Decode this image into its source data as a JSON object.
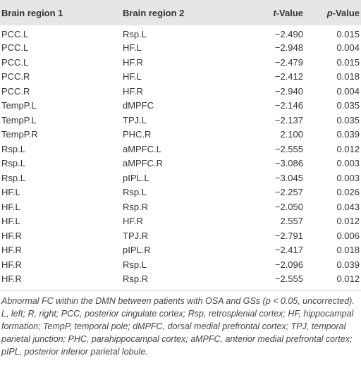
{
  "table": {
    "headers": [
      "Brain region 1",
      "Brain region 2",
      "Value",
      "Value"
    ],
    "header_prefixes": [
      "",
      "",
      "t-",
      "p-"
    ],
    "rows": [
      [
        "PCC.L",
        "Rsp.L",
        "−2.490",
        "0.015"
      ],
      [
        "PCC.L",
        "HF.L",
        "−2.948",
        "0.004"
      ],
      [
        "PCC.L",
        "HF.R",
        "−2.479",
        "0.015"
      ],
      [
        "PCC.R",
        "HF.L",
        "−2.412",
        "0.018"
      ],
      [
        "PCC.R",
        "HF.R",
        "−2.940",
        "0.004"
      ],
      [
        "TempP.L",
        "dMPFC",
        "−2.146",
        "0.035"
      ],
      [
        "TempP.L",
        "TPJ.L",
        "−2.137",
        "0.035"
      ],
      [
        "TempP.R",
        "PHC.R",
        "2.100",
        "0.039"
      ],
      [
        "Rsp.L",
        "aMPFC.L",
        "−2.555",
        "0.012"
      ],
      [
        "Rsp.L",
        "aMPFC.R",
        "−3.086",
        "0.003"
      ],
      [
        "Rsp.L",
        "pIPL.L",
        "−3.045",
        "0.003"
      ],
      [
        "HF.L",
        "Rsp.L",
        "−2.257",
        "0.026"
      ],
      [
        "HF.L",
        "Rsp.R",
        "−2.050",
        "0.043"
      ],
      [
        "HF.L",
        "HF.R",
        "2.557",
        "0.012"
      ],
      [
        "HF.R",
        "TPJ.R",
        "−2.791",
        "0.006"
      ],
      [
        "HF.R",
        "pIPL.R",
        "−2.417",
        "0.018"
      ],
      [
        "HF.R",
        "Rsp.L",
        "−2.096",
        "0.039"
      ],
      [
        "HF.R",
        "Rsp.R",
        "−2.555",
        "0.012"
      ]
    ]
  },
  "footnotes": {
    "line1": "Abnormal FC within the DMN between patients with OSA and GSs (p < 0.05, uncorrected).",
    "line2": "L, left; R, right; PCC, posterior cingulate cortex; Rsp, retrosplenial cortex; HF, hippocampal formation; TempP, temporal pole; dMPFC, dorsal medial prefrontal cortex; TPJ, temporal parietal junction; PHC, parahippocampal cortex; aMPFC, anterior medial prefrontal cortex; pIPL, posterior inferior parietal lobule."
  },
  "colors": {
    "header_background": "#e6e6e6",
    "text": "#333333",
    "rule": "#c8c8c8"
  }
}
